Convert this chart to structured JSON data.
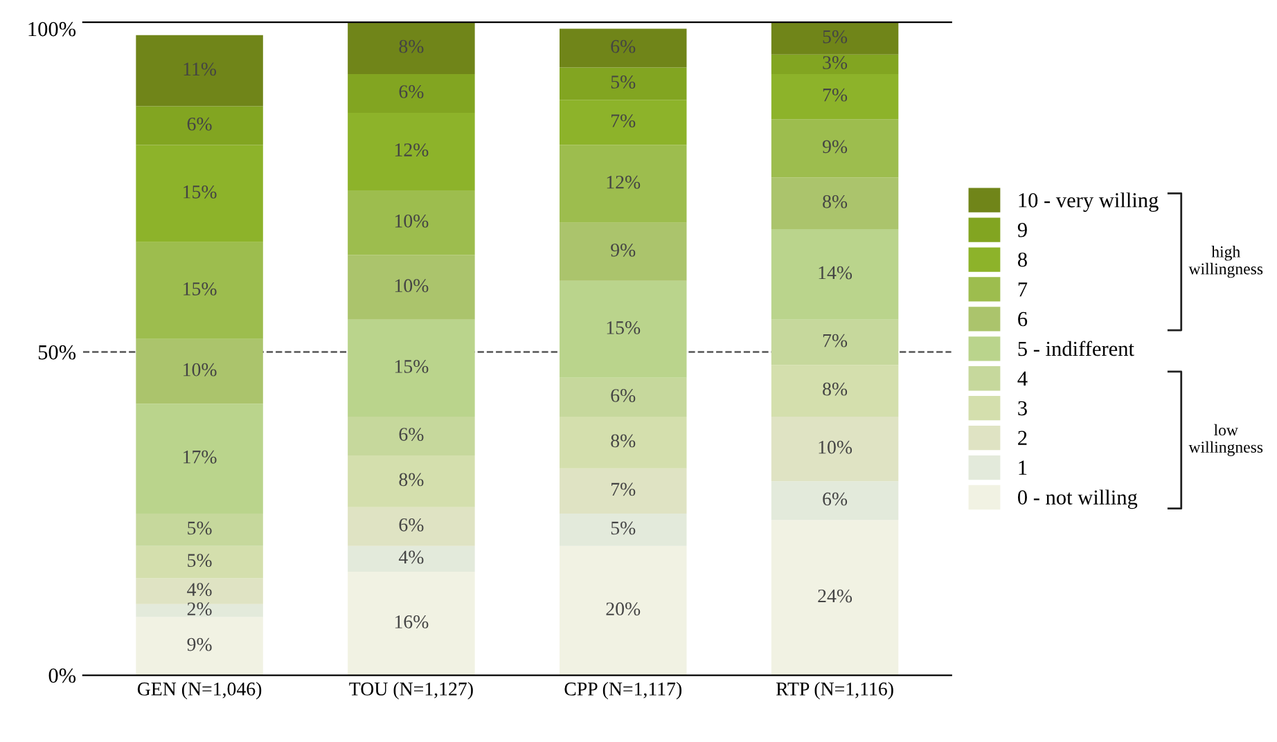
{
  "chart_data": {
    "type": "bar",
    "stacked": true,
    "categories": [
      "GEN (N=1,046)",
      "TOU (N=1,127)",
      "CPP (N=1,117)",
      "RTP (N=1,116)"
    ],
    "series": [
      {
        "name": "0 - not willing",
        "color": "#f1f2e3",
        "values": [
          9,
          16,
          20,
          24
        ],
        "value_labels": [
          "9%",
          "16%",
          "20%",
          "24%"
        ]
      },
      {
        "name": "1",
        "color": "#e3eadb",
        "values": [
          2,
          4,
          5,
          6
        ],
        "value_labels": [
          "2%",
          "4%",
          "5%",
          "6%"
        ]
      },
      {
        "name": "2",
        "color": "#dfe3c3",
        "values": [
          4,
          6,
          7,
          10
        ],
        "value_labels": [
          "4%",
          "6%",
          "7%",
          "10%"
        ]
      },
      {
        "name": "3",
        "color": "#d4dfad",
        "values": [
          5,
          8,
          8,
          8
        ],
        "value_labels": [
          "5%",
          "8%",
          "8%",
          "8%"
        ]
      },
      {
        "name": "4",
        "color": "#c6d89c",
        "values": [
          5,
          6,
          6,
          7
        ],
        "value_labels": [
          "5%",
          "6%",
          "6%",
          "7%"
        ]
      },
      {
        "name": "5 - indifferent",
        "color": "#bad48c",
        "values": [
          17,
          15,
          15,
          14
        ],
        "value_labels": [
          "17%",
          "15%",
          "15%",
          "14%"
        ]
      },
      {
        "name": "6",
        "color": "#abc46c",
        "values": [
          10,
          10,
          9,
          8
        ],
        "value_labels": [
          "10%",
          "10%",
          "9%",
          "8%"
        ]
      },
      {
        "name": "7",
        "color": "#9dbd4e",
        "values": [
          15,
          10,
          12,
          9
        ],
        "value_labels": [
          "15%",
          "10%",
          "12%",
          "9%"
        ]
      },
      {
        "name": "8",
        "color": "#8db32a",
        "values": [
          15,
          12,
          7,
          7
        ],
        "value_labels": [
          "15%",
          "12%",
          "7%",
          "7%"
        ]
      },
      {
        "name": "9",
        "color": "#82a521",
        "values": [
          6,
          6,
          5,
          3
        ],
        "value_labels": [
          "6%",
          "6%",
          "5%",
          "3%"
        ]
      },
      {
        "name": "10 - very willing",
        "color": "#708519",
        "values": [
          11,
          8,
          6,
          5
        ],
        "value_labels": [
          "11%",
          "8%",
          "6%",
          "5%"
        ]
      }
    ],
    "ylim": [
      0,
      101
    ],
    "yticks": [
      {
        "value": 0,
        "label": "0%"
      },
      {
        "value": 50,
        "label": "50%"
      },
      {
        "value": 100,
        "label": "100%"
      }
    ],
    "ref_lines": [
      {
        "axis": "y",
        "value": 50,
        "color": "#555555",
        "line_style": "dashed"
      }
    ],
    "annotations": [
      "high\nwillingness",
      "low\nwillingness"
    ],
    "grid": false,
    "legend": "right"
  }
}
